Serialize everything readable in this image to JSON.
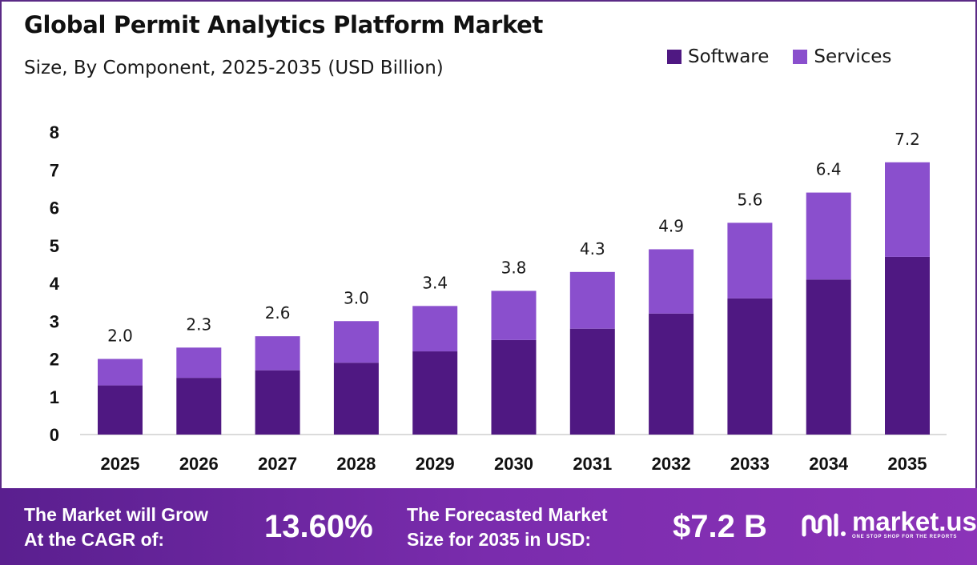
{
  "header": {
    "title": "Global Permit Analytics Platform Market",
    "subtitle": "Size, By Component, 2025-2035 (USD Billion)"
  },
  "colors": {
    "software": "#4f1882",
    "services": "#8a4fcd",
    "footer_bg": "#6e27a2"
  },
  "chart_data": {
    "type": "bar",
    "stacked": true,
    "categories": [
      "2025",
      "2026",
      "2027",
      "2028",
      "2029",
      "2030",
      "2031",
      "2032",
      "2033",
      "2034",
      "2035"
    ],
    "series": [
      {
        "name": "Software",
        "values": [
          1.3,
          1.5,
          1.7,
          1.9,
          2.2,
          2.5,
          2.8,
          3.2,
          3.6,
          4.1,
          4.7
        ]
      },
      {
        "name": "Services",
        "values": [
          0.7,
          0.8,
          0.9,
          1.1,
          1.2,
          1.3,
          1.5,
          1.7,
          2.0,
          2.3,
          2.5
        ]
      }
    ],
    "totals": [
      "2.0",
      "2.3",
      "2.6",
      "3.0",
      "3.4",
      "3.8",
      "4.3",
      "4.9",
      "5.6",
      "6.4",
      "7.2"
    ],
    "ylim": [
      0,
      8
    ],
    "yticks": [
      "0",
      "1",
      "2",
      "3",
      "4",
      "5",
      "6",
      "7",
      "8"
    ],
    "title": "Global Permit Analytics Platform Market",
    "subtitle": "Size, By Component, 2025-2035 (USD Billion)",
    "grid": false,
    "legend_position": "top-right"
  },
  "footer": {
    "cagr_label_line1": "The Market will Grow",
    "cagr_label_line2": "At the CAGR of:",
    "cagr_value": "13.60%",
    "forecast_label_line1": "The Forecasted Market",
    "forecast_label_line2": "Size for 2035 in USD:",
    "forecast_value": "$7.2 B",
    "brand_name": "market.us",
    "brand_tagline": "ONE STOP SHOP FOR THE REPORTS"
  }
}
